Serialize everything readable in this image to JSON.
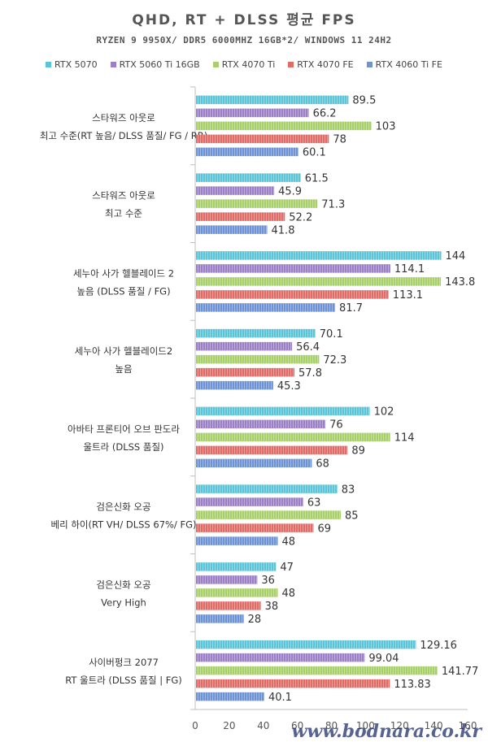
{
  "title": "QHD, RT + DLSS 평균 FPS",
  "subtitle": "RYZEN 9 9950X/ DDR5 6000MHZ 16GB*2/ WINDOWS 11 24H2",
  "watermark": "www.bodnara.co.kr",
  "chart_data": {
    "type": "bar",
    "orientation": "horizontal",
    "categories": [
      [
        "스타워즈 아웃로",
        "최고 수준(RT 높음/ DLSS 품질/ FG / RR)"
      ],
      [
        "스타워즈 아웃로",
        "최고 수준"
      ],
      [
        "세누아 사가 헬블레이드 2",
        "높음 (DLSS 품질 / FG)"
      ],
      [
        "세누아 사가 헬블레이드2",
        "높음"
      ],
      [
        "아바타 프론티어 오브 판도라",
        "울트라 (DLSS 품질)"
      ],
      [
        "검은신화 오공",
        "베리 하이(RT VH/ DLSS 67%/ FG)"
      ],
      [
        "검은신화 오공",
        "Very High"
      ],
      [
        "사이버펑크 2077",
        "RT 울트라 (DLSS 품질 | FG)"
      ]
    ],
    "series": [
      {
        "name": "RTX 5070",
        "color": "#5bc4d6",
        "values": [
          89.5,
          61.5,
          144,
          70.1,
          102,
          83,
          47,
          129.16
        ]
      },
      {
        "name": "RTX 5060 Ti 16GB",
        "color": "#9b80c6",
        "values": [
          66.2,
          45.9,
          114.1,
          56.4,
          76,
          63,
          36,
          99.04
        ]
      },
      {
        "name": "RTX 4070 Ti",
        "color": "#a8cf6a",
        "values": [
          103,
          71.3,
          143.8,
          72.3,
          114,
          85,
          48,
          141.77
        ]
      },
      {
        "name": "RTX 4070 FE",
        "color": "#e06c68",
        "values": [
          78,
          52.2,
          113.1,
          57.8,
          89,
          69,
          38,
          113.83
        ]
      },
      {
        "name": "RTX 4060 Ti FE",
        "color": "#6e93d4",
        "values": [
          60.1,
          41.8,
          81.7,
          45.3,
          68,
          48,
          28,
          40.1
        ]
      }
    ],
    "value_labels": [
      [
        "89.5",
        "61.5",
        "144",
        "70.1",
        "102",
        "83",
        "47",
        "129.16"
      ],
      [
        "66.2",
        "45.9",
        "114.1",
        "56.4",
        "76",
        "63",
        "36",
        "99.04"
      ],
      [
        "103",
        "71.3",
        "143.8",
        "72.3",
        "114",
        "85",
        "48",
        "141.77"
      ],
      [
        "78",
        "52.2",
        "113.1",
        "57.8",
        "89",
        "69",
        "38",
        "113.83"
      ],
      [
        "60.1",
        "41.8",
        "81.7",
        "45.3",
        "68",
        "48",
        "28",
        "40.1"
      ]
    ],
    "xlim": [
      0,
      160
    ],
    "xticks": [
      0,
      20,
      40,
      60,
      80,
      100,
      120,
      140,
      160
    ],
    "xtick_labels": [
      "0",
      "20",
      "40",
      "60",
      "80",
      "100",
      "120",
      "140",
      "160"
    ],
    "grid": false,
    "legend_position": "top"
  }
}
